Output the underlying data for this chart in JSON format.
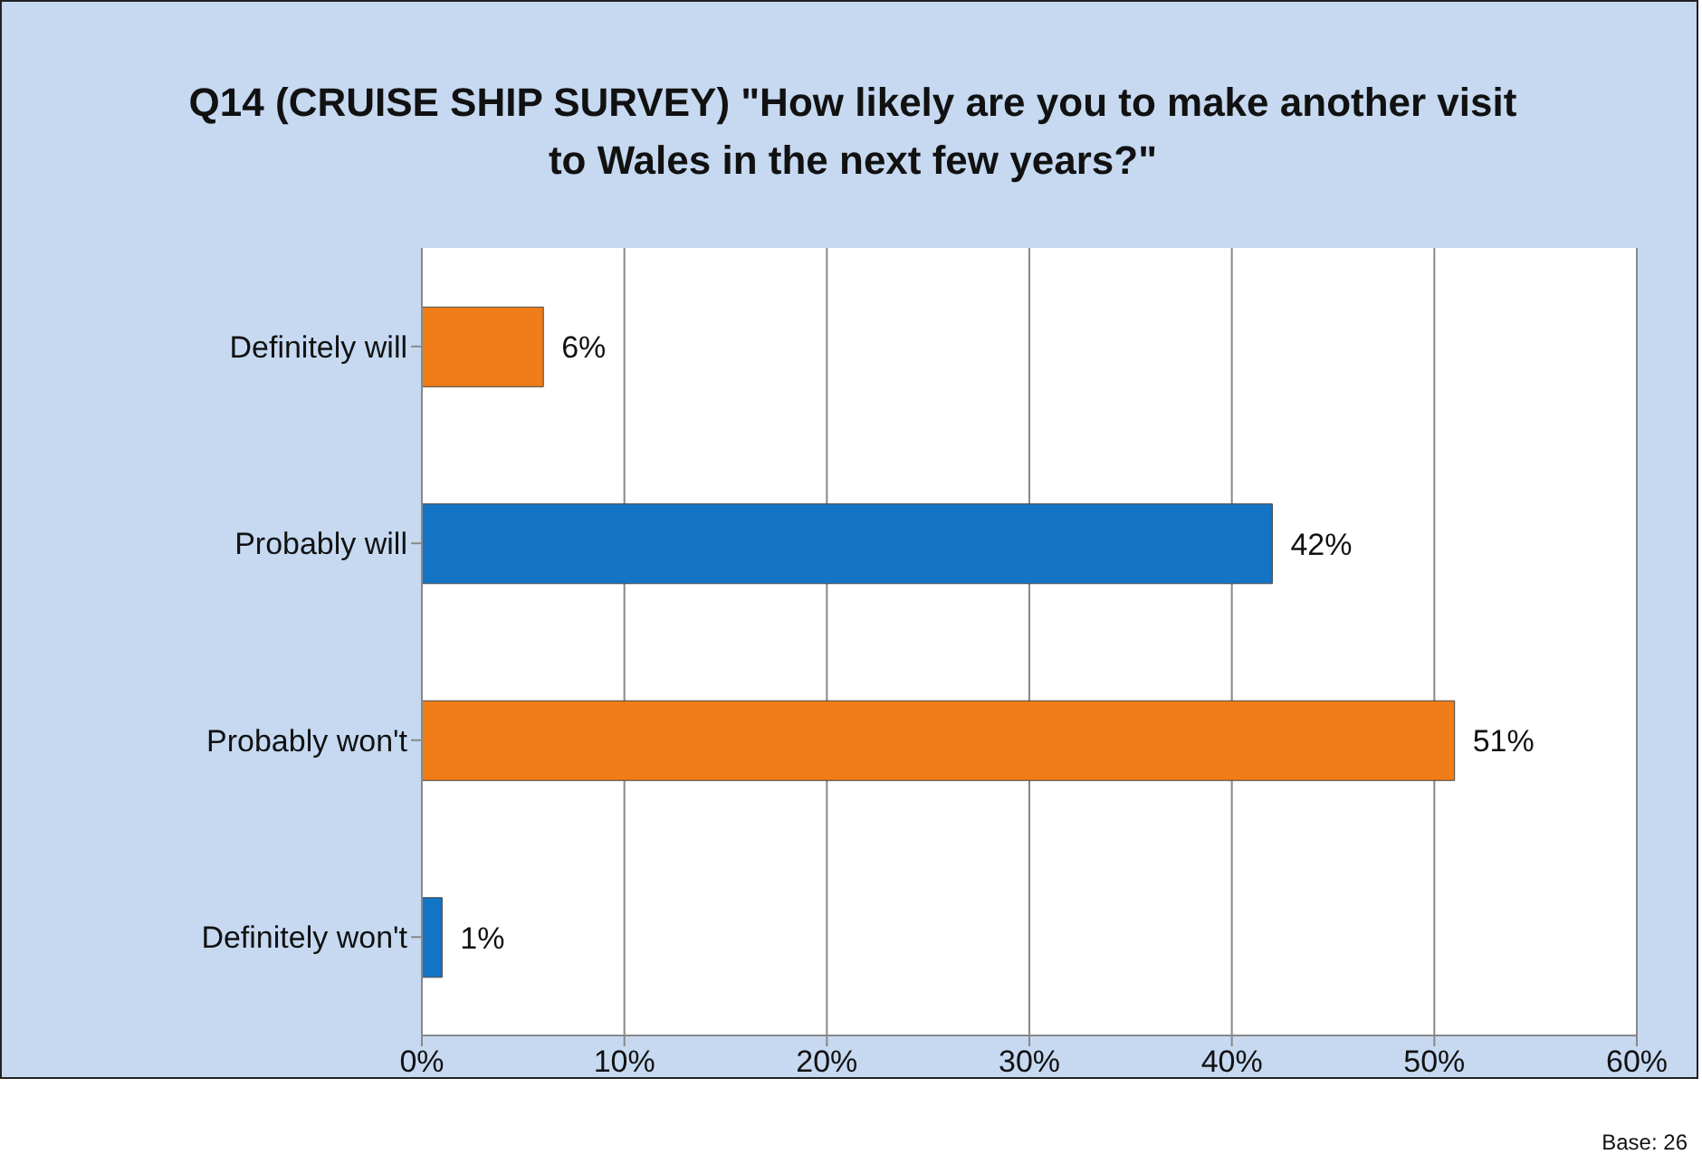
{
  "chart_data": {
    "type": "bar",
    "orientation": "horizontal",
    "title": "Q14 (CRUISE SHIP SURVEY) \"How likely are you to make another visit to Wales in the next few years?\"",
    "categories": [
      "Definitely will",
      "Probably will",
      "Probably won't",
      "Definitely won't"
    ],
    "values": [
      6,
      42,
      51,
      1
    ],
    "colors": [
      "#f07d18",
      "#1374c6",
      "#f07d18",
      "#1374c6"
    ],
    "value_labels": [
      "6%",
      "42%",
      "51%",
      "1%"
    ],
    "xlim": [
      0,
      60
    ],
    "xticks": [
      {
        "value": 0,
        "label": "0%"
      },
      {
        "value": 10,
        "label": "10%"
      },
      {
        "value": 20,
        "label": "20%"
      },
      {
        "value": 30,
        "label": "30%"
      },
      {
        "value": 40,
        "label": "40%"
      },
      {
        "value": 50,
        "label": "50%"
      },
      {
        "value": 60,
        "label": "60%"
      }
    ],
    "grid": "x",
    "annotations": [
      "Base: 26"
    ]
  }
}
